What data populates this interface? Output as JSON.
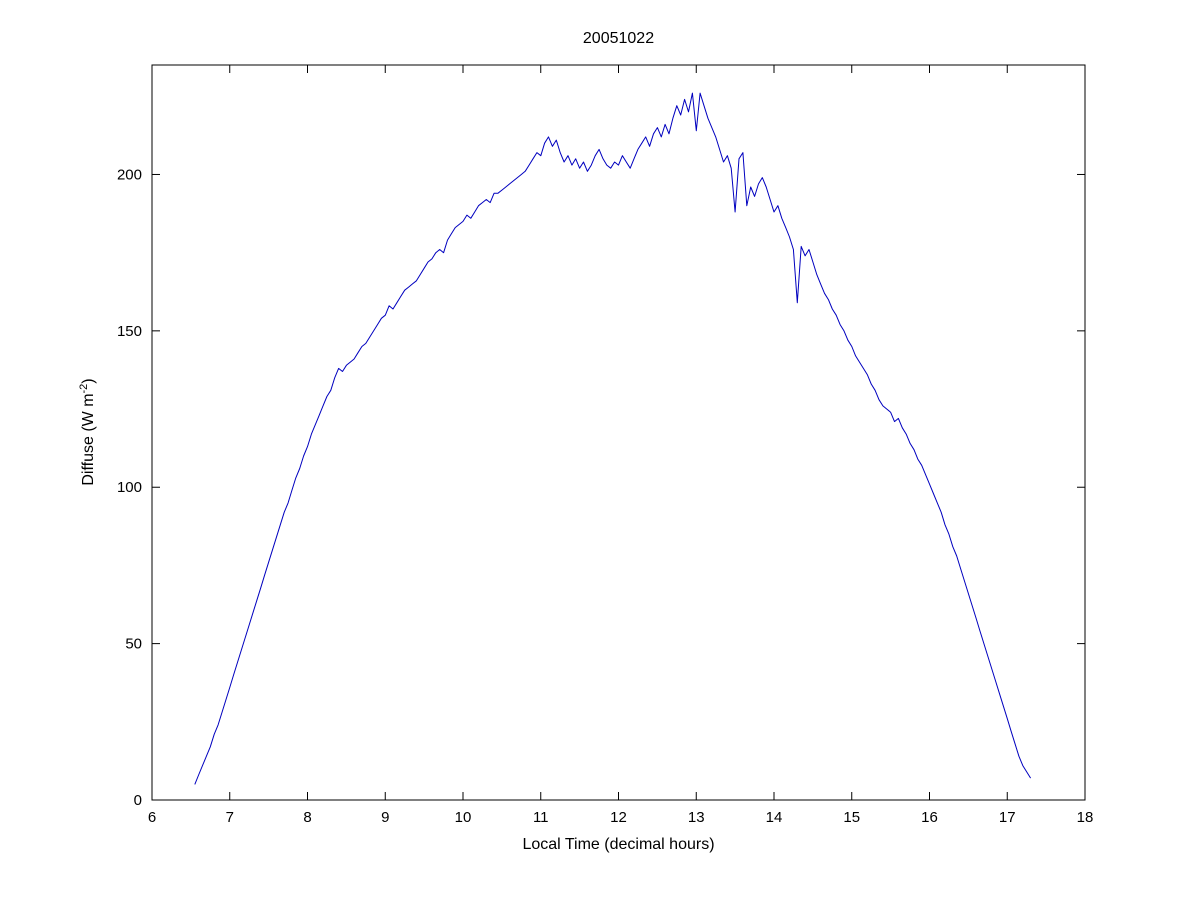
{
  "figure": {
    "title": "20051022",
    "xlabel": "Local Time (decimal hours)",
    "ylabel_prefix": "Diffuse (W m",
    "ylabel_sup": "-2",
    "ylabel_suffix": ")",
    "background": "#ffffff",
    "axis_color": "#000000"
  },
  "chart_data": {
    "type": "line",
    "title": "20051022",
    "xlabel": "Local Time (decimal hours)",
    "ylabel": "Diffuse (W m^-2)",
    "xlim": [
      6,
      18
    ],
    "ylim": [
      0,
      235
    ],
    "xticks": [
      6,
      7,
      8,
      9,
      10,
      11,
      12,
      13,
      14,
      15,
      16,
      17,
      18
    ],
    "yticks": [
      0,
      50,
      100,
      150,
      200
    ],
    "grid": false,
    "legend": null,
    "line_color": "#0000bf",
    "series": [
      {
        "name": "diffuse-irradiance",
        "points": [
          [
            6.55,
            5
          ],
          [
            6.6,
            8
          ],
          [
            6.65,
            11
          ],
          [
            6.7,
            14
          ],
          [
            6.75,
            17
          ],
          [
            6.8,
            21
          ],
          [
            6.85,
            24
          ],
          [
            6.9,
            28
          ],
          [
            6.95,
            32
          ],
          [
            7.0,
            36
          ],
          [
            7.05,
            40
          ],
          [
            7.1,
            44
          ],
          [
            7.15,
            48
          ],
          [
            7.2,
            52
          ],
          [
            7.25,
            56
          ],
          [
            7.3,
            60
          ],
          [
            7.35,
            64
          ],
          [
            7.4,
            68
          ],
          [
            7.45,
            72
          ],
          [
            7.5,
            76
          ],
          [
            7.55,
            80
          ],
          [
            7.6,
            84
          ],
          [
            7.65,
            88
          ],
          [
            7.7,
            92
          ],
          [
            7.75,
            95
          ],
          [
            7.8,
            99
          ],
          [
            7.85,
            103
          ],
          [
            7.9,
            106
          ],
          [
            7.95,
            110
          ],
          [
            8.0,
            113
          ],
          [
            8.05,
            117
          ],
          [
            8.1,
            120
          ],
          [
            8.15,
            123
          ],
          [
            8.2,
            126
          ],
          [
            8.25,
            129
          ],
          [
            8.3,
            131
          ],
          [
            8.35,
            135
          ],
          [
            8.4,
            138
          ],
          [
            8.45,
            137
          ],
          [
            8.5,
            139
          ],
          [
            8.55,
            140
          ],
          [
            8.6,
            141
          ],
          [
            8.65,
            143
          ],
          [
            8.7,
            145
          ],
          [
            8.75,
            146
          ],
          [
            8.8,
            148
          ],
          [
            8.85,
            150
          ],
          [
            8.9,
            152
          ],
          [
            8.95,
            154
          ],
          [
            9.0,
            155
          ],
          [
            9.05,
            158
          ],
          [
            9.1,
            157
          ],
          [
            9.15,
            159
          ],
          [
            9.2,
            161
          ],
          [
            9.25,
            163
          ],
          [
            9.3,
            164
          ],
          [
            9.35,
            165
          ],
          [
            9.4,
            166
          ],
          [
            9.45,
            168
          ],
          [
            9.5,
            170
          ],
          [
            9.55,
            172
          ],
          [
            9.6,
            173
          ],
          [
            9.65,
            175
          ],
          [
            9.7,
            176
          ],
          [
            9.75,
            175
          ],
          [
            9.8,
            179
          ],
          [
            9.85,
            181
          ],
          [
            9.9,
            183
          ],
          [
            9.95,
            184
          ],
          [
            10.0,
            185
          ],
          [
            10.05,
            187
          ],
          [
            10.1,
            186
          ],
          [
            10.15,
            188
          ],
          [
            10.2,
            190
          ],
          [
            10.25,
            191
          ],
          [
            10.3,
            192
          ],
          [
            10.35,
            191
          ],
          [
            10.4,
            194
          ],
          [
            10.45,
            194
          ],
          [
            10.5,
            195
          ],
          [
            10.55,
            196
          ],
          [
            10.6,
            197
          ],
          [
            10.65,
            198
          ],
          [
            10.7,
            199
          ],
          [
            10.75,
            200
          ],
          [
            10.8,
            201
          ],
          [
            10.85,
            203
          ],
          [
            10.9,
            205
          ],
          [
            10.95,
            207
          ],
          [
            11.0,
            206
          ],
          [
            11.05,
            210
          ],
          [
            11.1,
            212
          ],
          [
            11.15,
            209
          ],
          [
            11.2,
            211
          ],
          [
            11.25,
            207
          ],
          [
            11.3,
            204
          ],
          [
            11.35,
            206
          ],
          [
            11.4,
            203
          ],
          [
            11.45,
            205
          ],
          [
            11.5,
            202
          ],
          [
            11.55,
            204
          ],
          [
            11.6,
            201
          ],
          [
            11.65,
            203
          ],
          [
            11.7,
            206
          ],
          [
            11.75,
            208
          ],
          [
            11.8,
            205
          ],
          [
            11.85,
            203
          ],
          [
            11.9,
            202
          ],
          [
            11.95,
            204
          ],
          [
            12.0,
            203
          ],
          [
            12.05,
            206
          ],
          [
            12.1,
            204
          ],
          [
            12.15,
            202
          ],
          [
            12.2,
            205
          ],
          [
            12.25,
            208
          ],
          [
            12.3,
            210
          ],
          [
            12.35,
            212
          ],
          [
            12.4,
            209
          ],
          [
            12.45,
            213
          ],
          [
            12.5,
            215
          ],
          [
            12.55,
            212
          ],
          [
            12.6,
            216
          ],
          [
            12.65,
            213
          ],
          [
            12.7,
            218
          ],
          [
            12.75,
            222
          ],
          [
            12.8,
            219
          ],
          [
            12.85,
            224
          ],
          [
            12.9,
            220
          ],
          [
            12.95,
            226
          ],
          [
            13.0,
            214
          ],
          [
            13.05,
            226
          ],
          [
            13.1,
            222
          ],
          [
            13.15,
            218
          ],
          [
            13.2,
            215
          ],
          [
            13.25,
            212
          ],
          [
            13.3,
            208
          ],
          [
            13.35,
            204
          ],
          [
            13.4,
            206
          ],
          [
            13.45,
            202
          ],
          [
            13.5,
            188
          ],
          [
            13.55,
            205
          ],
          [
            13.6,
            207
          ],
          [
            13.65,
            190
          ],
          [
            13.7,
            196
          ],
          [
            13.75,
            193
          ],
          [
            13.8,
            197
          ],
          [
            13.85,
            199
          ],
          [
            13.9,
            196
          ],
          [
            13.95,
            192
          ],
          [
            14.0,
            188
          ],
          [
            14.05,
            190
          ],
          [
            14.1,
            186
          ],
          [
            14.15,
            183
          ],
          [
            14.2,
            180
          ],
          [
            14.25,
            176
          ],
          [
            14.3,
            159
          ],
          [
            14.35,
            177
          ],
          [
            14.4,
            174
          ],
          [
            14.45,
            176
          ],
          [
            14.5,
            172
          ],
          [
            14.55,
            168
          ],
          [
            14.6,
            165
          ],
          [
            14.65,
            162
          ],
          [
            14.7,
            160
          ],
          [
            14.75,
            157
          ],
          [
            14.8,
            155
          ],
          [
            14.85,
            152
          ],
          [
            14.9,
            150
          ],
          [
            14.95,
            147
          ],
          [
            15.0,
            145
          ],
          [
            15.05,
            142
          ],
          [
            15.1,
            140
          ],
          [
            15.15,
            138
          ],
          [
            15.2,
            136
          ],
          [
            15.25,
            133
          ],
          [
            15.3,
            131
          ],
          [
            15.35,
            128
          ],
          [
            15.4,
            126
          ],
          [
            15.45,
            125
          ],
          [
            15.5,
            124
          ],
          [
            15.55,
            121
          ],
          [
            15.6,
            122
          ],
          [
            15.65,
            119
          ],
          [
            15.7,
            117
          ],
          [
            15.75,
            114
          ],
          [
            15.8,
            112
          ],
          [
            15.85,
            109
          ],
          [
            15.9,
            107
          ],
          [
            15.95,
            104
          ],
          [
            16.0,
            101
          ],
          [
            16.05,
            98
          ],
          [
            16.1,
            95
          ],
          [
            16.15,
            92
          ],
          [
            16.2,
            88
          ],
          [
            16.25,
            85
          ],
          [
            16.3,
            81
          ],
          [
            16.35,
            78
          ],
          [
            16.4,
            74
          ],
          [
            16.45,
            70
          ],
          [
            16.5,
            66
          ],
          [
            16.55,
            62
          ],
          [
            16.6,
            58
          ],
          [
            16.65,
            54
          ],
          [
            16.7,
            50
          ],
          [
            16.75,
            46
          ],
          [
            16.8,
            42
          ],
          [
            16.85,
            38
          ],
          [
            16.9,
            34
          ],
          [
            16.95,
            30
          ],
          [
            17.0,
            26
          ],
          [
            17.05,
            22
          ],
          [
            17.1,
            18
          ],
          [
            17.15,
            14
          ],
          [
            17.2,
            11
          ],
          [
            17.25,
            9
          ],
          [
            17.3,
            7
          ]
        ]
      }
    ]
  }
}
